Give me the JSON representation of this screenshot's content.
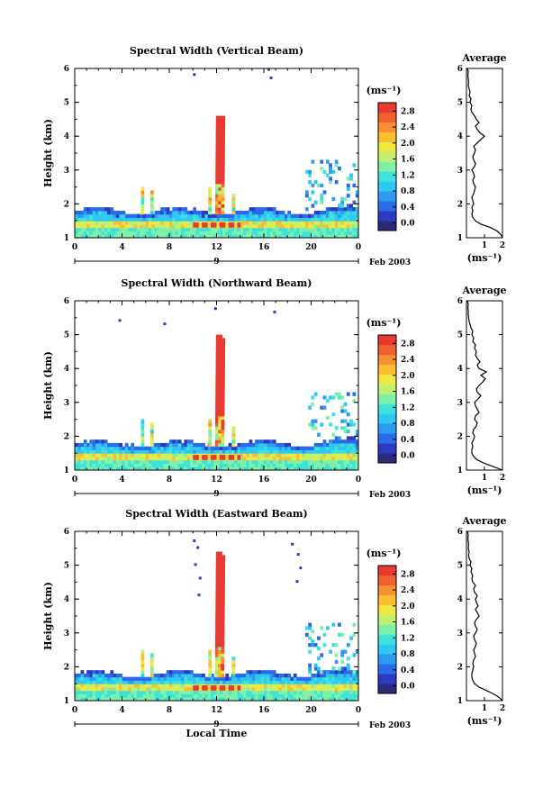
{
  "chart_data": [
    {
      "type": "heatmap",
      "title": "Spectral Width (Vertical Beam)",
      "xlabel": "",
      "ylabel": "Height (km)",
      "xlim": [
        0,
        24
      ],
      "ylim": [
        1,
        6
      ],
      "x_ticks": [
        "0",
        "4",
        "8",
        "12",
        "16",
        "20",
        "0"
      ],
      "y_ticks": [
        "1",
        "2",
        "3",
        "4",
        "5",
        "6"
      ],
      "date_day": "9",
      "date_month": "Feb 2003",
      "colorbar": {
        "unit": "(ms⁻¹)",
        "min": 0,
        "max": 3.0,
        "ticks": [
          "0.0",
          "0.4",
          "0.8",
          "1.2",
          "1.6",
          "2.0",
          "2.4",
          "2.8"
        ]
      },
      "average": {
        "title": "Average",
        "xlabel": "(ms⁻¹)",
        "xlim": [
          0,
          2
        ],
        "x_ticks": [
          "1",
          "2"
        ],
        "y_ticks": [
          "1",
          "2",
          "3",
          "4",
          "5",
          "6"
        ],
        "profile_h": [
          1.0,
          1.1,
          1.2,
          1.3,
          1.4,
          1.5,
          1.6,
          1.7,
          1.8,
          1.9,
          2.0,
          2.1,
          2.2,
          2.3,
          2.4,
          2.5,
          2.6,
          2.7,
          2.8,
          2.9,
          3.0,
          3.1,
          3.2,
          3.3,
          3.4,
          3.5,
          3.6,
          3.7,
          3.8,
          3.9,
          4.0,
          4.1,
          4.2,
          4.3,
          4.4,
          4.5,
          4.6,
          4.7,
          4.8,
          4.9,
          5.0,
          5.1,
          5.2,
          5.3,
          5.4,
          5.5,
          5.6,
          5.7,
          5.8,
          5.9,
          6.0
        ],
        "profile_v": [
          2.0,
          1.9,
          1.7,
          1.35,
          0.8,
          0.5,
          0.35,
          0.3,
          0.35,
          0.3,
          0.4,
          0.35,
          0.3,
          0.4,
          0.45,
          0.5,
          0.4,
          0.35,
          0.45,
          0.4,
          0.3,
          0.45,
          0.5,
          0.4,
          0.35,
          0.45,
          0.5,
          0.4,
          0.6,
          0.8,
          1.0,
          0.75,
          0.6,
          0.5,
          0.7,
          0.55,
          0.45,
          0.3,
          0.25,
          0.3,
          0.2,
          0.25,
          0.15,
          0.2,
          0.15,
          0.1,
          0.12,
          0.1,
          0.08,
          0.1,
          0.05
        ]
      }
    },
    {
      "type": "heatmap",
      "title": "Spectral Width (Northward Beam)",
      "xlabel": "",
      "ylabel": "Height (km)",
      "xlim": [
        0,
        24
      ],
      "ylim": [
        1,
        6
      ],
      "x_ticks": [
        "0",
        "4",
        "8",
        "12",
        "16",
        "20",
        "0"
      ],
      "y_ticks": [
        "1",
        "2",
        "3",
        "4",
        "5",
        "6"
      ],
      "date_day": "9",
      "date_month": "Feb 2003",
      "colorbar": {
        "unit": "(ms⁻¹)",
        "min": 0,
        "max": 3.0,
        "ticks": [
          "0.0",
          "0.4",
          "0.8",
          "1.2",
          "1.6",
          "2.0",
          "2.4",
          "2.8"
        ]
      },
      "average": {
        "title": "Average",
        "xlabel": "(ms⁻¹)",
        "xlim": [
          0,
          2
        ],
        "x_ticks": [
          "1",
          "2"
        ],
        "y_ticks": [
          "1",
          "2",
          "3",
          "4",
          "5",
          "6"
        ],
        "profile_h": [
          1.0,
          1.1,
          1.2,
          1.3,
          1.4,
          1.5,
          1.6,
          1.7,
          1.8,
          1.9,
          2.0,
          2.1,
          2.2,
          2.3,
          2.4,
          2.5,
          2.6,
          2.7,
          2.8,
          2.9,
          3.0,
          3.1,
          3.2,
          3.3,
          3.4,
          3.5,
          3.6,
          3.7,
          3.8,
          3.9,
          4.0,
          4.1,
          4.2,
          4.3,
          4.4,
          4.5,
          4.6,
          4.7,
          4.8,
          4.9,
          5.0,
          5.1,
          5.2,
          5.3,
          5.4,
          5.5,
          5.6,
          5.7,
          5.8,
          5.9,
          6.0
        ],
        "profile_v": [
          2.0,
          1.5,
          1.0,
          0.6,
          0.4,
          0.3,
          0.3,
          0.35,
          0.3,
          0.4,
          0.45,
          0.35,
          0.4,
          0.55,
          0.6,
          0.45,
          0.5,
          0.7,
          0.6,
          0.5,
          0.45,
          0.65,
          0.8,
          0.6,
          0.55,
          0.7,
          0.9,
          1.05,
          0.8,
          1.1,
          0.7,
          0.6,
          0.75,
          0.6,
          0.5,
          0.55,
          0.45,
          0.5,
          0.35,
          0.4,
          0.3,
          0.35,
          0.25,
          0.2,
          0.15,
          0.12,
          0.1,
          0.1,
          0.08,
          0.1,
          0.05
        ]
      }
    },
    {
      "type": "heatmap",
      "title": "Spectral Width (Eastward Beam)",
      "xlabel": "Local Time",
      "ylabel": "Height (km)",
      "xlim": [
        0,
        24
      ],
      "ylim": [
        1,
        6
      ],
      "x_ticks": [
        "0",
        "4",
        "8",
        "12",
        "16",
        "20",
        "0"
      ],
      "y_ticks": [
        "1",
        "2",
        "3",
        "4",
        "5",
        "6"
      ],
      "date_day": "9",
      "date_month": "Feb 2003",
      "colorbar": {
        "unit": "(ms⁻¹)",
        "min": 0,
        "max": 3.0,
        "ticks": [
          "0.0",
          "0.4",
          "0.8",
          "1.2",
          "1.6",
          "2.0",
          "2.4",
          "2.8"
        ]
      },
      "average": {
        "title": "Average",
        "xlabel": "(ms⁻¹)",
        "xlim": [
          0,
          2
        ],
        "x_ticks": [
          "1",
          "2"
        ],
        "y_ticks": [
          "1",
          "2",
          "3",
          "4",
          "5",
          "6"
        ],
        "profile_h": [
          1.0,
          1.1,
          1.2,
          1.3,
          1.4,
          1.5,
          1.6,
          1.7,
          1.8,
          1.9,
          2.0,
          2.1,
          2.2,
          2.3,
          2.4,
          2.5,
          2.6,
          2.7,
          2.8,
          2.9,
          3.0,
          3.1,
          3.2,
          3.3,
          3.4,
          3.5,
          3.6,
          3.7,
          3.8,
          3.9,
          4.0,
          4.1,
          4.2,
          4.3,
          4.4,
          4.5,
          4.6,
          4.7,
          4.8,
          4.9,
          5.0,
          5.1,
          5.2,
          5.3,
          5.4,
          5.5,
          5.6,
          5.7,
          5.8,
          5.9,
          6.0
        ],
        "profile_v": [
          2.0,
          1.8,
          1.5,
          1.1,
          0.7,
          0.45,
          0.35,
          0.3,
          0.3,
          0.35,
          0.4,
          0.35,
          0.4,
          0.5,
          0.45,
          0.4,
          0.5,
          0.55,
          0.45,
          0.4,
          0.5,
          0.6,
          0.5,
          0.45,
          0.55,
          0.7,
          0.6,
          0.5,
          0.65,
          0.55,
          0.5,
          0.6,
          0.45,
          0.4,
          0.5,
          0.35,
          0.3,
          0.35,
          0.25,
          0.3,
          0.2,
          0.25,
          0.15,
          0.12,
          0.15,
          0.1,
          0.12,
          0.1,
          0.08,
          0.1,
          0.05
        ]
      }
    }
  ]
}
